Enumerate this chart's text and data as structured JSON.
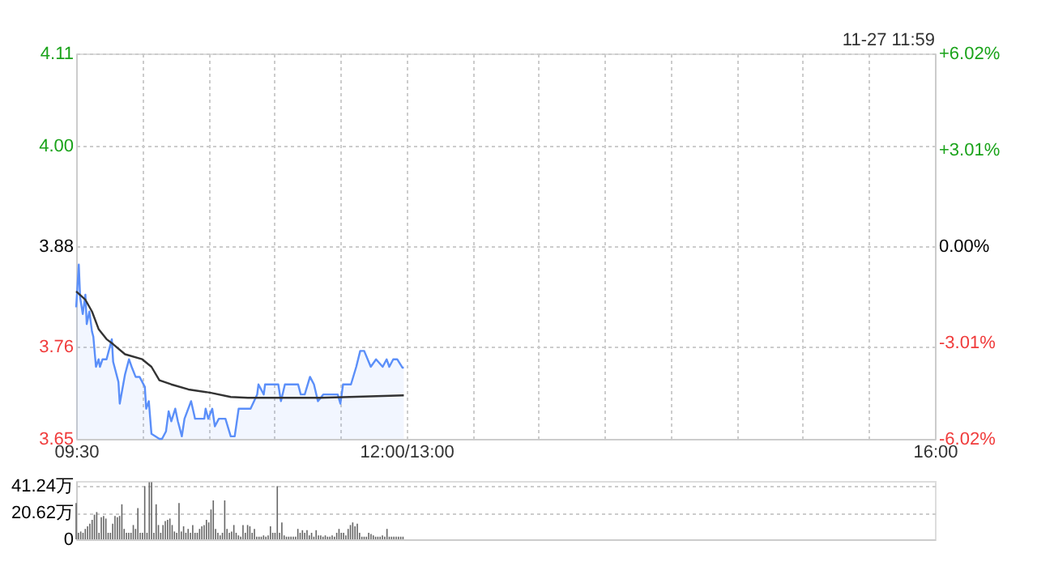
{
  "chart_data": [
    {
      "type": "line",
      "annotations": [
        "11-27 11:59"
      ],
      "grid": true,
      "xlim": [
        9.5,
        16
      ],
      "xticks": [
        {
          "value": 9.5,
          "label": "09:30"
        },
        {
          "value": 10,
          "label": null
        },
        {
          "value": 10.5,
          "label": null
        },
        {
          "value": 11,
          "label": null
        },
        {
          "value": 11.5,
          "label": null
        },
        {
          "value": 12,
          "label": "12:00/13:00"
        },
        {
          "value": 12.5,
          "label": null
        },
        {
          "value": 13,
          "label": null
        },
        {
          "value": 13.5,
          "label": null
        },
        {
          "value": 14,
          "label": null
        },
        {
          "value": 14.5,
          "label": null
        },
        {
          "value": 15,
          "label": null
        },
        {
          "value": 15.5,
          "label": null
        },
        {
          "value": 16,
          "label": "16:00"
        }
      ],
      "ylim": [
        3.65,
        4.11
      ],
      "yticks": [
        {
          "value": 3.65,
          "label": "3.65"
        },
        {
          "value": 3.76,
          "label": "3.76"
        },
        {
          "value": 3.88,
          "label": "3.88"
        },
        {
          "value": 4.0,
          "label": "4.00"
        },
        {
          "value": 4.11,
          "label": "4.11"
        }
      ],
      "y2lim": [
        -6.02,
        6.02
      ],
      "y2ticks": [
        {
          "value": -6.02,
          "label": "-6.02%"
        },
        {
          "value": -3.01,
          "label": "-3.01%"
        },
        {
          "value": 0,
          "label": "0.00%"
        },
        {
          "value": 3.01,
          "label": "+3.01%"
        },
        {
          "value": 6.02,
          "label": "+6.02%"
        }
      ],
      "series": [
        {
          "type": "area",
          "color": "#5b8ff9",
          "x": [
            9.5,
            9.52,
            9.53,
            9.55,
            9.57,
            9.58,
            9.6,
            9.62,
            9.63,
            9.65,
            9.67,
            9.68,
            9.7,
            9.73,
            9.77,
            9.78,
            9.82,
            9.83,
            9.87,
            9.9,
            9.92,
            9.95,
            9.98,
            10.02,
            10.03,
            10.05,
            10.07,
            10.13,
            10.15,
            10.18,
            10.2,
            10.22,
            10.25,
            10.27,
            10.3,
            10.32,
            10.37,
            10.4,
            10.47,
            10.48,
            10.5,
            10.53,
            10.55,
            10.58,
            10.63,
            10.67,
            10.7,
            10.73,
            10.82,
            10.87,
            10.88,
            10.92,
            10.93,
            11.03,
            11.05,
            11.08,
            11.18,
            11.2,
            11.23,
            11.27,
            11.3,
            11.33,
            11.37,
            11.48,
            11.5,
            11.52,
            11.58,
            11.62,
            11.65,
            11.68,
            11.73,
            11.77,
            11.82,
            11.85,
            11.87,
            11.9,
            11.93,
            11.97,
            11.98
          ],
          "values": [
            3.807,
            3.858,
            3.819,
            3.799,
            3.822,
            3.787,
            3.802,
            3.778,
            3.772,
            3.736,
            3.745,
            3.736,
            3.745,
            3.745,
            3.769,
            3.742,
            3.718,
            3.692,
            3.727,
            3.745,
            3.736,
            3.724,
            3.724,
            3.712,
            3.686,
            3.695,
            3.656,
            3.65,
            3.65,
            3.659,
            3.683,
            3.671,
            3.686,
            3.671,
            3.653,
            3.674,
            3.695,
            3.674,
            3.674,
            3.686,
            3.674,
            3.686,
            3.665,
            3.674,
            3.674,
            3.653,
            3.653,
            3.686,
            3.686,
            3.703,
            3.715,
            3.703,
            3.715,
            3.715,
            3.695,
            3.715,
            3.715,
            3.703,
            3.703,
            3.724,
            3.715,
            3.695,
            3.703,
            3.703,
            3.692,
            3.715,
            3.715,
            3.736,
            3.755,
            3.755,
            3.736,
            3.745,
            3.736,
            3.745,
            3.736,
            3.745,
            3.745,
            3.735,
            3.735
          ]
        },
        {
          "type": "line",
          "color": "#333333",
          "x": [
            9.5,
            9.57,
            9.62,
            9.67,
            9.73,
            9.78,
            9.87,
            10,
            10.07,
            10.13,
            10.22,
            10.35,
            10.52,
            10.67,
            10.8,
            11.35,
            11.57,
            11.98
          ],
          "values": [
            3.826,
            3.816,
            3.802,
            3.781,
            3.769,
            3.763,
            3.751,
            3.745,
            3.736,
            3.72,
            3.715,
            3.709,
            3.705,
            3.7,
            3.699,
            3.699,
            3.7,
            3.702
          ]
        }
      ]
    },
    {
      "type": "bar",
      "color": "#666666",
      "grid": "y",
      "tick_labels": "y",
      "xlim": [
        9.5,
        16
      ],
      "ylim": [
        0,
        45
      ],
      "yticks": [
        {
          "value": 0,
          "label": "0"
        },
        {
          "value": 20.62,
          "label": "20.62万"
        },
        {
          "value": 41.24,
          "label": "41.24万"
        }
      ],
      "x": [
        9.5,
        9.5173,
        9.5346,
        9.5519,
        9.5692,
        9.5865,
        9.6038,
        9.6211,
        9.6384,
        9.6557,
        9.673,
        9.6903,
        9.7076,
        9.7249,
        9.7422,
        9.7595,
        9.7768,
        9.7941,
        9.8114,
        9.8287,
        9.846,
        9.8633,
        9.8806,
        9.8979,
        9.9152,
        9.9325,
        9.9498,
        9.9671,
        9.9844,
        10.0017,
        10.019,
        10.0363,
        10.0536,
        10.0709,
        10.0882,
        10.1055,
        10.1228,
        10.1401,
        10.1574,
        10.1747,
        10.192,
        10.2093,
        10.2266,
        10.2439,
        10.2612,
        10.2785,
        10.2958,
        10.3131,
        10.3304,
        10.3477,
        10.365,
        10.3823,
        10.3996,
        10.4169,
        10.4342,
        10.4515,
        10.4688,
        10.4861,
        10.5034,
        10.5207,
        10.538,
        10.5553,
        10.5726,
        10.5899,
        10.6072,
        10.6245,
        10.6418,
        10.6591,
        10.6764,
        10.6937,
        10.711,
        10.7283,
        10.7456,
        10.7629,
        10.7802,
        10.7975,
        10.8148,
        10.8321,
        10.8494,
        10.8667,
        10.884,
        10.9013,
        10.9186,
        10.9359,
        10.9532,
        10.9705,
        10.9878,
        11.0051,
        11.0224,
        11.0397,
        11.057,
        11.0743,
        11.0916,
        11.1089,
        11.1262,
        11.1435,
        11.1608,
        11.1781,
        11.1954,
        11.2127,
        11.23,
        11.2473,
        11.2646,
        11.2819,
        11.2992,
        11.3165,
        11.3338,
        11.3511,
        11.3684,
        11.3857,
        11.403,
        11.4203,
        11.4376,
        11.4549,
        11.4722,
        11.4895,
        11.5068,
        11.5241,
        11.5414,
        11.5587,
        11.576,
        11.5933,
        11.6106,
        11.6279,
        11.6452,
        11.6625,
        11.6798,
        11.6971,
        11.7144,
        11.7317,
        11.749,
        11.7663,
        11.7836,
        11.8009,
        11.8182,
        11.8355,
        11.8528,
        11.8701,
        11.8874,
        11.9047,
        11.922,
        11.9393,
        11.9566,
        11.9739
      ],
      "values": [
        28,
        5,
        6,
        5,
        8,
        10,
        12,
        15,
        19,
        21,
        5,
        17,
        18,
        16,
        5,
        5,
        12,
        18,
        17,
        18,
        27,
        8,
        5,
        5,
        5,
        11,
        8,
        24,
        5,
        5,
        41,
        5,
        44,
        44,
        5,
        27,
        11,
        5,
        11,
        14,
        15,
        16,
        11,
        6,
        5,
        28,
        6,
        10,
        5,
        8,
        5,
        11,
        5,
        5,
        8,
        10,
        11,
        15,
        13,
        23,
        30,
        8,
        5,
        3,
        5,
        30,
        8,
        5,
        6,
        11,
        5,
        3,
        2,
        11,
        5,
        11,
        10,
        5,
        8,
        2,
        2,
        2,
        3,
        2,
        3,
        10,
        5,
        5,
        41,
        5,
        13,
        3,
        2,
        2,
        2,
        2,
        2,
        8,
        5,
        7,
        5,
        7,
        3,
        5,
        2,
        7,
        3,
        3,
        2,
        3,
        2,
        2,
        3,
        2,
        5,
        8,
        5,
        5,
        3,
        8,
        11,
        13,
        10,
        12,
        5,
        2,
        2,
        2,
        5,
        4,
        3,
        2,
        2,
        2,
        3,
        2,
        8,
        2,
        2,
        2,
        2,
        2,
        2,
        2
      ]
    }
  ]
}
